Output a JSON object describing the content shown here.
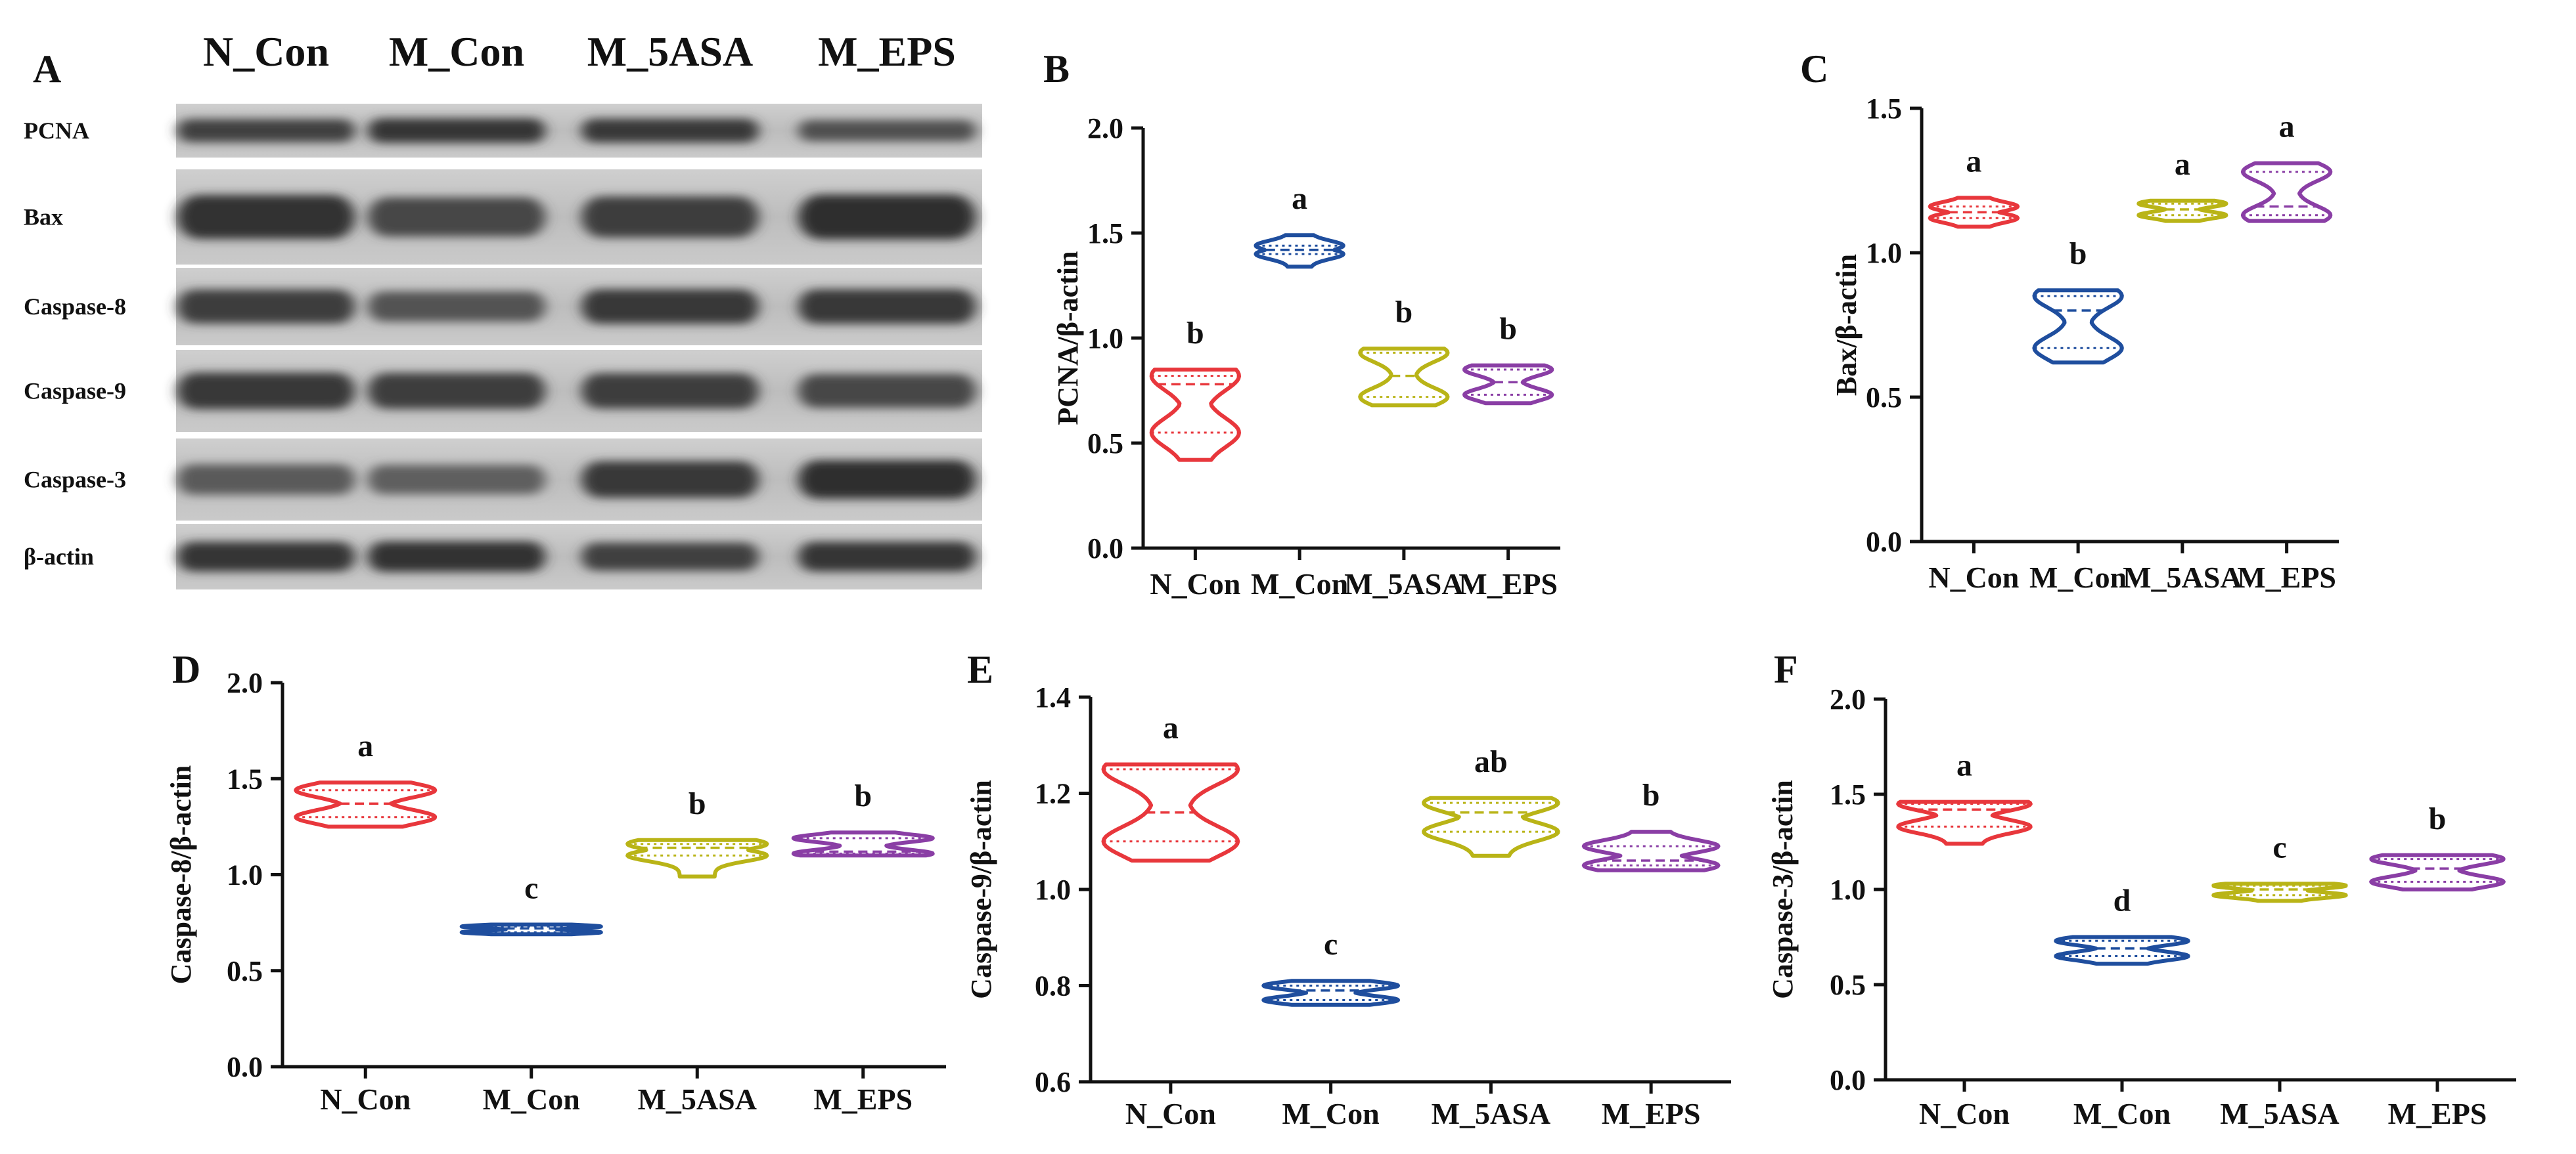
{
  "figure_panels": [
    "A",
    "B",
    "C",
    "D",
    "E",
    "F"
  ],
  "western_blot": {
    "panel": "A",
    "columns": [
      "N_Con",
      "M_Con",
      "M_5ASA",
      "M_EPS"
    ],
    "rows": [
      {
        "label": "PCNA",
        "band_intensity": [
          0.78,
          0.88,
          0.85,
          0.65
        ]
      },
      {
        "label": "Bax",
        "band_intensity": [
          0.92,
          0.72,
          0.8,
          0.95
        ]
      },
      {
        "label": "Caspase-8",
        "band_intensity": [
          0.82,
          0.62,
          0.85,
          0.85
        ]
      },
      {
        "label": "Caspase-9",
        "band_intensity": [
          0.85,
          0.82,
          0.8,
          0.72
        ]
      },
      {
        "label": "Caspase-3",
        "band_intensity": [
          0.55,
          0.5,
          0.85,
          0.95
        ]
      },
      {
        "label": "β-actin",
        "band_intensity": [
          0.88,
          0.92,
          0.78,
          0.88
        ]
      }
    ]
  },
  "colors": {
    "N_Con": "#e8373c",
    "M_Con": "#1f4e9e",
    "M_5ASA": "#b9b417",
    "M_EPS": "#8a3ea5",
    "axis": "#111111"
  },
  "chart_data": [
    {
      "panel": "B",
      "type": "violin",
      "title": "",
      "xlabel": "",
      "ylabel": "PCNA/β-actin",
      "categories": [
        "N_Con",
        "M_Con",
        "M_5ASA",
        "M_EPS"
      ],
      "ylim": [
        0,
        2.0
      ],
      "yticks": [
        "0.0",
        "0.5",
        "1.0",
        "1.5",
        "2.0"
      ],
      "series": [
        {
          "name": "N_Con",
          "min": 0.42,
          "max": 0.85,
          "median": 0.78,
          "q1": 0.55,
          "q3": 0.82,
          "sig": "b"
        },
        {
          "name": "M_Con",
          "min": 1.34,
          "max": 1.49,
          "median": 1.42,
          "q1": 1.4,
          "q3": 1.44,
          "sig": "a"
        },
        {
          "name": "M_5ASA",
          "min": 0.68,
          "max": 0.95,
          "median": 0.82,
          "q1": 0.72,
          "q3": 0.93,
          "sig": "b"
        },
        {
          "name": "M_EPS",
          "min": 0.69,
          "max": 0.87,
          "median": 0.79,
          "q1": 0.73,
          "q3": 0.85,
          "sig": "b"
        }
      ]
    },
    {
      "panel": "C",
      "type": "violin",
      "title": "",
      "xlabel": "",
      "ylabel": "Bax/β-actin",
      "categories": [
        "N_Con",
        "M_Con",
        "M_5ASA",
        "M_EPS"
      ],
      "ylim": [
        0,
        1.5
      ],
      "yticks": [
        "0.0",
        "0.5",
        "1.0",
        "1.5"
      ],
      "series": [
        {
          "name": "N_Con",
          "min": 1.09,
          "max": 1.19,
          "median": 1.14,
          "q1": 1.12,
          "q3": 1.16,
          "sig": "a"
        },
        {
          "name": "M_Con",
          "min": 0.62,
          "max": 0.87,
          "median": 0.8,
          "q1": 0.67,
          "q3": 0.85,
          "sig": "b"
        },
        {
          "name": "M_5ASA",
          "min": 1.11,
          "max": 1.18,
          "median": 1.15,
          "q1": 1.13,
          "q3": 1.17,
          "sig": "a"
        },
        {
          "name": "M_EPS",
          "min": 1.11,
          "max": 1.31,
          "median": 1.16,
          "q1": 1.13,
          "q3": 1.28,
          "sig": "a"
        }
      ]
    },
    {
      "panel": "D",
      "type": "violin",
      "title": "",
      "xlabel": "",
      "ylabel": "Caspase-8/β-actin",
      "categories": [
        "N_Con",
        "M_Con",
        "M_5ASA",
        "M_EPS"
      ],
      "ylim": [
        0,
        2.0
      ],
      "yticks": [
        "0.0",
        "0.5",
        "1.0",
        "1.5",
        "2.0"
      ],
      "series": [
        {
          "name": "N_Con",
          "min": 1.25,
          "max": 1.48,
          "median": 1.37,
          "q1": 1.3,
          "q3": 1.44,
          "sig": "a"
        },
        {
          "name": "M_Con",
          "min": 0.69,
          "max": 0.74,
          "median": 0.72,
          "q1": 0.7,
          "q3": 0.73,
          "sig": "c"
        },
        {
          "name": "M_5ASA",
          "min": 0.99,
          "max": 1.18,
          "median": 1.14,
          "q1": 1.1,
          "q3": 1.16,
          "sig": "b"
        },
        {
          "name": "M_EPS",
          "min": 1.1,
          "max": 1.22,
          "median": 1.12,
          "q1": 1.11,
          "q3": 1.19,
          "sig": "b"
        }
      ]
    },
    {
      "panel": "E",
      "type": "violin",
      "title": "",
      "xlabel": "",
      "ylabel": "Caspase-9/β-actin",
      "categories": [
        "N_Con",
        "M_Con",
        "M_5ASA",
        "M_EPS"
      ],
      "ylim": [
        0.6,
        1.4
      ],
      "yticks": [
        "0.6",
        "0.8",
        "1.0",
        "1.2",
        "1.4"
      ],
      "series": [
        {
          "name": "N_Con",
          "min": 1.06,
          "max": 1.26,
          "median": 1.16,
          "q1": 1.1,
          "q3": 1.25,
          "sig": "a"
        },
        {
          "name": "M_Con",
          "min": 0.76,
          "max": 0.81,
          "median": 0.79,
          "q1": 0.77,
          "q3": 0.8,
          "sig": "c"
        },
        {
          "name": "M_5ASA",
          "min": 1.07,
          "max": 1.19,
          "median": 1.16,
          "q1": 1.12,
          "q3": 1.18,
          "sig": "ab"
        },
        {
          "name": "M_EPS",
          "min": 1.04,
          "max": 1.12,
          "median": 1.06,
          "q1": 1.05,
          "q3": 1.09,
          "sig": "b"
        }
      ]
    },
    {
      "panel": "F",
      "type": "violin",
      "title": "",
      "xlabel": "",
      "ylabel": "Caspase-3/β-actin",
      "categories": [
        "N_Con",
        "M_Con",
        "M_5ASA",
        "M_EPS"
      ],
      "ylim": [
        0,
        2.0
      ],
      "yticks": [
        "0.0",
        "0.5",
        "1.0",
        "1.5",
        "2.0"
      ],
      "series": [
        {
          "name": "N_Con",
          "min": 1.24,
          "max": 1.46,
          "median": 1.42,
          "q1": 1.33,
          "q3": 1.45,
          "sig": "a"
        },
        {
          "name": "M_Con",
          "min": 0.61,
          "max": 0.75,
          "median": 0.69,
          "q1": 0.65,
          "q3": 0.73,
          "sig": "d"
        },
        {
          "name": "M_5ASA",
          "min": 0.94,
          "max": 1.03,
          "median": 1.0,
          "q1": 0.97,
          "q3": 1.02,
          "sig": "c"
        },
        {
          "name": "M_EPS",
          "min": 1.0,
          "max": 1.18,
          "median": 1.11,
          "q1": 1.04,
          "q3": 1.16,
          "sig": "b"
        }
      ]
    }
  ]
}
